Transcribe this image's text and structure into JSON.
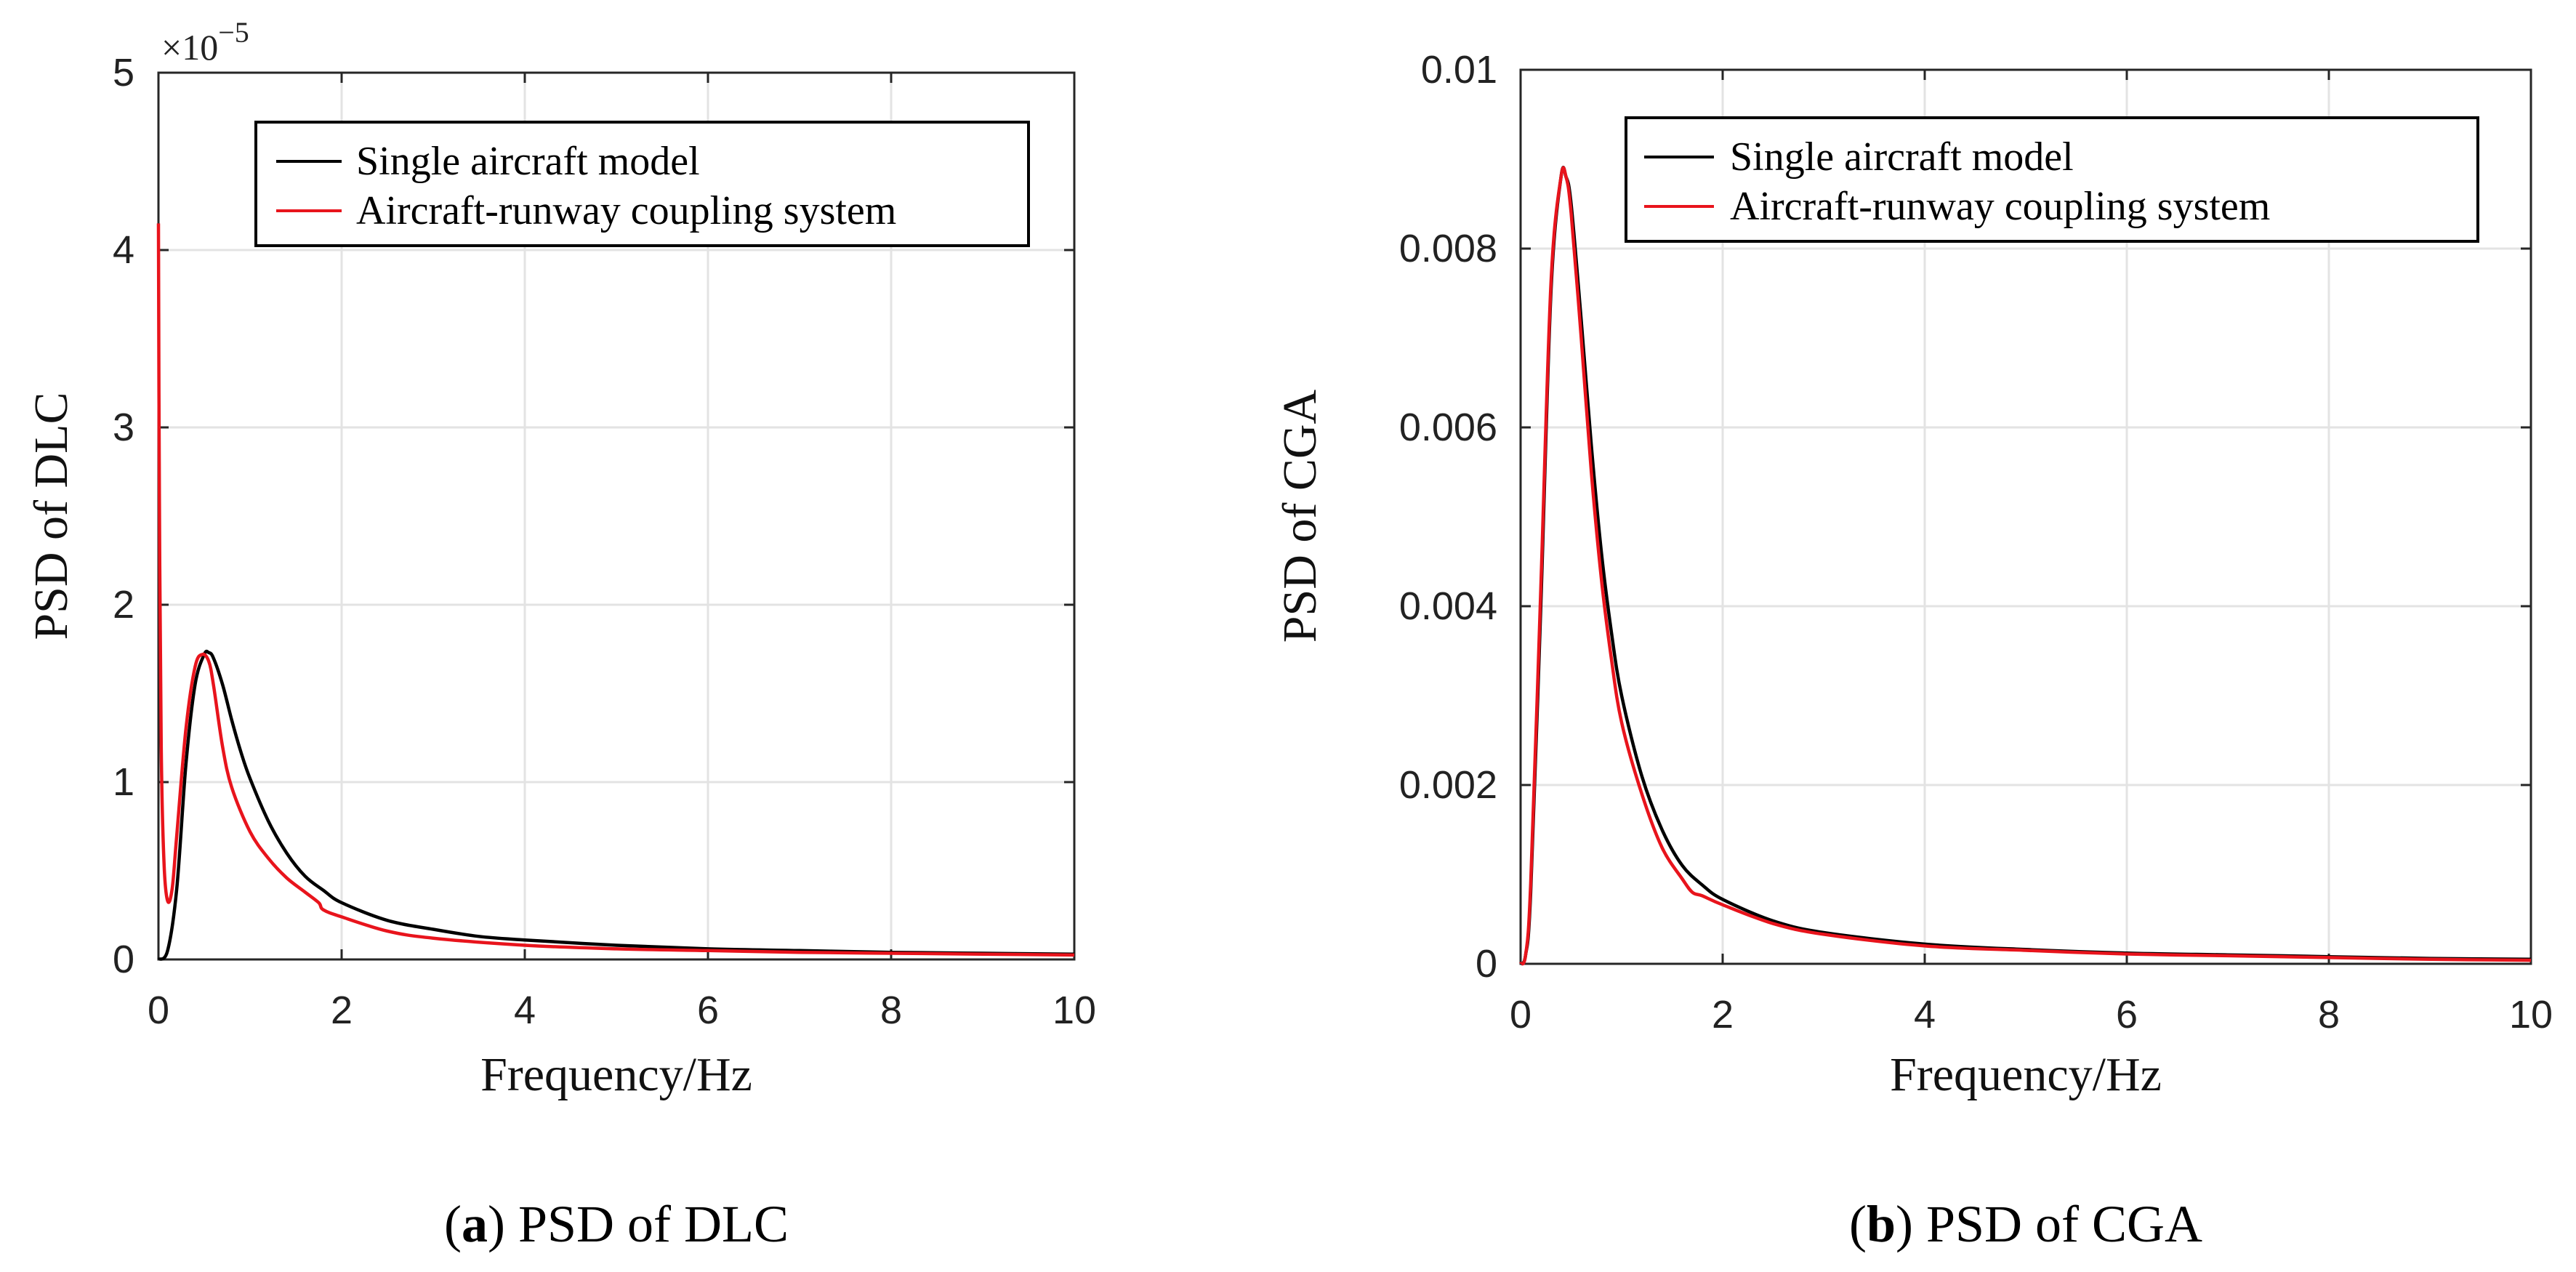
{
  "chart_data": [
    {
      "type": "line",
      "id": "a",
      "xlabel": "Frequency/Hz",
      "ylabel": "PSD of DLC",
      "xlim": [
        0,
        10
      ],
      "ylim": [
        0,
        5
      ],
      "xticks": [
        "0",
        "2",
        "4",
        "6",
        "8",
        "10"
      ],
      "yticks": [
        "0",
        "1",
        "2",
        "3",
        "4",
        "5"
      ],
      "y_scale_label": "×10",
      "y_scale_exponent": "−5",
      "grid": true,
      "legend_position": "top-right",
      "caption_letter": "a",
      "caption_text": "PSD of DLC",
      "series": [
        {
          "name": "Single aircraft model",
          "color": "#000000",
          "x": [
            0,
            0.1,
            0.2,
            0.3,
            0.4,
            0.5,
            0.55,
            0.6,
            0.7,
            0.8,
            0.9,
            1.0,
            1.2,
            1.4,
            1.6,
            1.8,
            2.0,
            2.5,
            3.0,
            3.5,
            4.0,
            5.0,
            6.0,
            7.0,
            8.0,
            9.0,
            10.0
          ],
          "y": [
            0,
            0.05,
            0.4,
            1.1,
            1.55,
            1.72,
            1.73,
            1.7,
            1.55,
            1.35,
            1.17,
            1.02,
            0.78,
            0.6,
            0.47,
            0.39,
            0.32,
            0.22,
            0.17,
            0.13,
            0.11,
            0.08,
            0.06,
            0.05,
            0.04,
            0.035,
            0.03
          ]
        },
        {
          "name": "Aircraft-runway coupling system",
          "color": "#e8141c",
          "x": [
            0,
            0.01,
            0.03,
            0.06,
            0.1,
            0.15,
            0.2,
            0.3,
            0.4,
            0.48,
            0.55,
            0.6,
            0.7,
            0.8,
            1.0,
            1.2,
            1.4,
            1.6,
            1.75,
            1.8,
            2.0,
            2.5,
            3.0,
            4.0,
            5.0,
            6.0,
            7.0,
            8.0,
            9.0,
            10.0
          ],
          "y": [
            4.15,
            2.6,
            1.2,
            0.55,
            0.33,
            0.4,
            0.7,
            1.3,
            1.65,
            1.72,
            1.68,
            1.55,
            1.2,
            0.97,
            0.72,
            0.57,
            0.46,
            0.38,
            0.32,
            0.28,
            0.24,
            0.16,
            0.12,
            0.08,
            0.06,
            0.05,
            0.04,
            0.035,
            0.03,
            0.025
          ]
        }
      ]
    },
    {
      "type": "line",
      "id": "b",
      "xlabel": "Frequency/Hz",
      "ylabel": "PSD of CGA",
      "xlim": [
        0,
        10
      ],
      "ylim": [
        0,
        0.01
      ],
      "xticks": [
        "0",
        "2",
        "4",
        "6",
        "8",
        "10"
      ],
      "yticks": [
        "0",
        "0.002",
        "0.004",
        "0.006",
        "0.008",
        "0.01"
      ],
      "grid": true,
      "legend_position": "top-right",
      "caption_letter": "b",
      "caption_text": "PSD of CGA",
      "series": [
        {
          "name": "Single aircraft model",
          "color": "#000000",
          "x": [
            0,
            0.05,
            0.1,
            0.2,
            0.3,
            0.4,
            0.45,
            0.5,
            0.6,
            0.7,
            0.8,
            0.9,
            1.0,
            1.2,
            1.4,
            1.6,
            1.8,
            2.0,
            2.5,
            3.0,
            4.0,
            5.0,
            6.0,
            7.0,
            8.0,
            9.0,
            10.0
          ],
          "y": [
            0,
            0.0001,
            0.0008,
            0.004,
            0.0075,
            0.0088,
            0.0088,
            0.0085,
            0.0072,
            0.0058,
            0.0046,
            0.0037,
            0.003,
            0.0021,
            0.0015,
            0.0011,
            0.00088,
            0.00072,
            0.00048,
            0.00035,
            0.00022,
            0.00016,
            0.00012,
            0.0001,
            8e-05,
            6e-05,
            5e-05
          ]
        },
        {
          "name": "Aircraft-runway coupling system",
          "color": "#e8141c",
          "x": [
            0,
            0.05,
            0.1,
            0.2,
            0.3,
            0.4,
            0.45,
            0.5,
            0.6,
            0.7,
            0.8,
            0.9,
            1.0,
            1.2,
            1.4,
            1.6,
            1.7,
            1.8,
            2.0,
            2.5,
            3.0,
            4.0,
            5.0,
            6.0,
            7.0,
            8.0,
            9.0,
            10.0
          ],
          "y": [
            0,
            0.0001,
            0.0009,
            0.0042,
            0.0076,
            0.0088,
            0.0088,
            0.0084,
            0.007,
            0.0055,
            0.0043,
            0.0034,
            0.0027,
            0.0019,
            0.0013,
            0.00095,
            0.0008,
            0.00076,
            0.00066,
            0.00045,
            0.00033,
            0.0002,
            0.00015,
            0.00011,
            9e-05,
            7e-05,
            5e-05,
            4e-05
          ]
        }
      ]
    }
  ]
}
